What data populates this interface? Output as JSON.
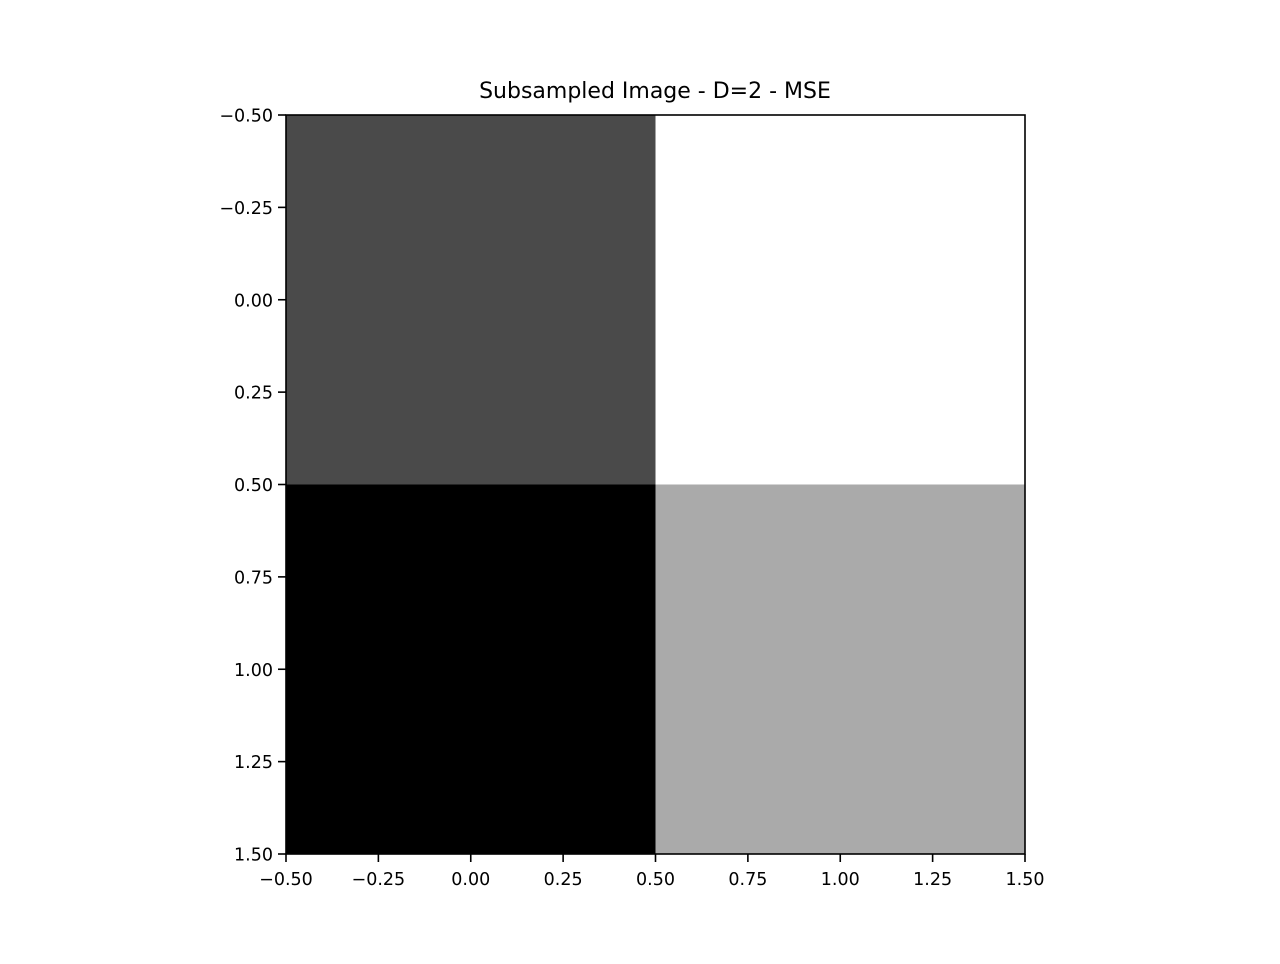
{
  "chart_data": {
    "type": "heatmap",
    "title": "Subsampled Image - D=2 - MSE",
    "colormap": "gray",
    "xlim": [
      -0.5,
      1.5
    ],
    "ylim": [
      1.5,
      -0.5
    ],
    "y_inverted": true,
    "grid": false,
    "x_ticks": [
      -0.5,
      -0.25,
      0.0,
      0.25,
      0.5,
      0.75,
      1.0,
      1.25,
      1.5
    ],
    "y_ticks": [
      -0.5,
      -0.25,
      0.0,
      0.25,
      0.5,
      0.75,
      1.0,
      1.25,
      1.5
    ],
    "x_tick_labels": [
      "−0.50",
      "−0.25",
      "0.00",
      "0.25",
      "0.50",
      "0.75",
      "1.00",
      "1.25",
      "1.50"
    ],
    "y_tick_labels": [
      "−0.50",
      "−0.25",
      "0.00",
      "0.25",
      "0.50",
      "0.75",
      "1.00",
      "1.25",
      "1.50"
    ],
    "cells": [
      {
        "row": 0,
        "col": 0,
        "color": "#4a4a4a"
      },
      {
        "row": 0,
        "col": 1,
        "color": "#ffffff"
      },
      {
        "row": 1,
        "col": 0,
        "color": "#000000"
      },
      {
        "row": 1,
        "col": 1,
        "color": "#aaaaaa"
      }
    ]
  }
}
